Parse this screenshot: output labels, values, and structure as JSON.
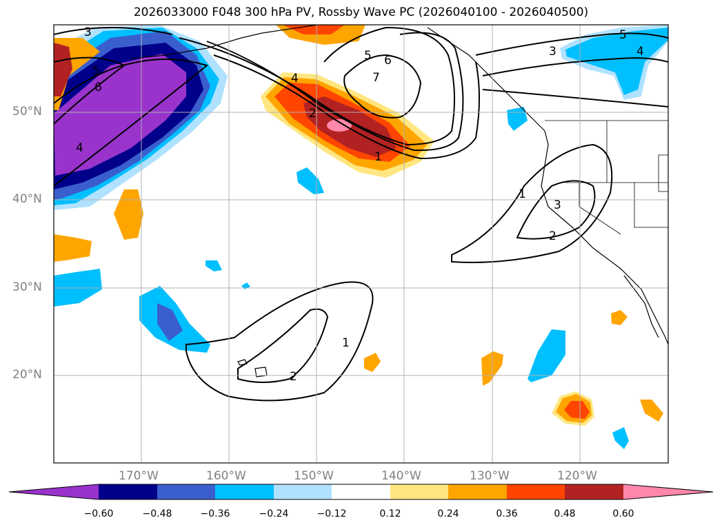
{
  "title": "2026033000 F048 300 hPa PV, Rossby Wave PC (2026040100 - 2026040500)",
  "lat_labels": [
    "50°N",
    "40°N",
    "30°N",
    "20°N"
  ],
  "lon_labels": [
    "170°W",
    "160°W",
    "150°W",
    "140°W",
    "130°W",
    "120°W"
  ],
  "colorbar": {
    "ticks": [
      "−0.60",
      "−0.48",
      "−0.36",
      "−0.24",
      "−0.12",
      "0.12",
      "0.24",
      "0.36",
      "0.48",
      "0.60"
    ],
    "colors": [
      "#9933cc",
      "#00008b",
      "#3a5fcd",
      "#00bfff",
      "#b0e2ff",
      "#ffffff",
      "#ffe680",
      "#ffa500",
      "#ff4500",
      "#b22222",
      "#ff88aa"
    ]
  },
  "contour_labels": [
    "3",
    "5",
    "6",
    "4",
    "5",
    "6",
    "7",
    "4",
    "2",
    "1",
    "1",
    "2",
    "3",
    "3",
    "5",
    "4",
    "1",
    "2"
  ]
}
